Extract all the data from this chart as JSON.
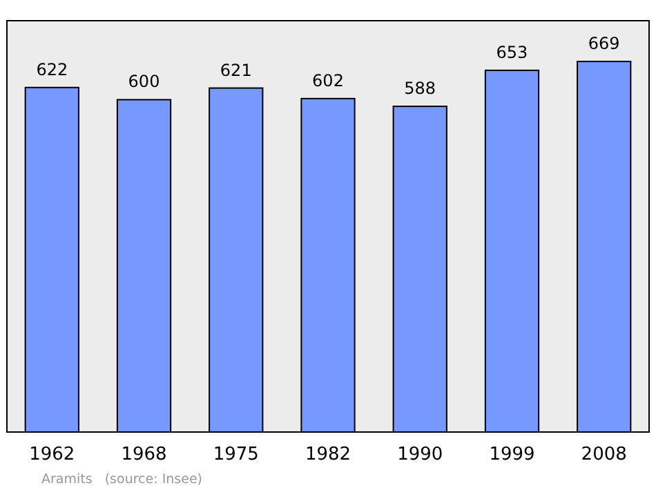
{
  "chart_data": {
    "type": "bar",
    "categories": [
      "1962",
      "1968",
      "1975",
      "1982",
      "1990",
      "1999",
      "2008"
    ],
    "values": [
      622,
      600,
      621,
      602,
      588,
      653,
      669
    ],
    "color": "#7799ff",
    "data_labels": true,
    "annotations": [
      "Aramits   (source: Insee)"
    ]
  }
}
